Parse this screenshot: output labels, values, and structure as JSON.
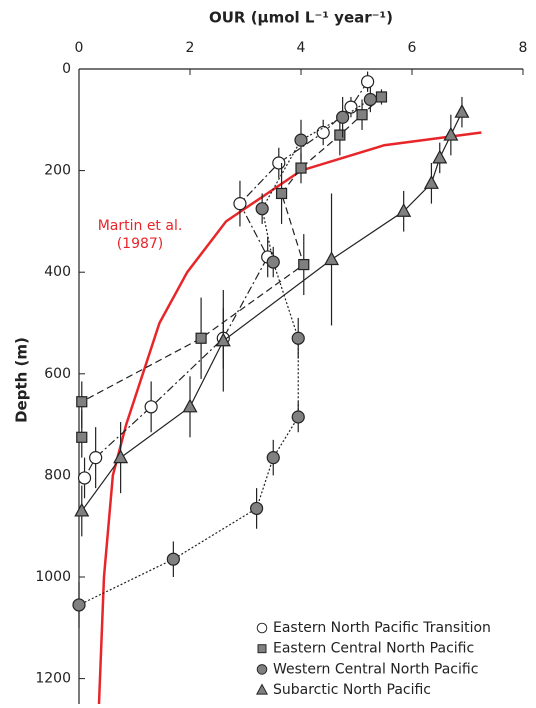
{
  "chart_data": {
    "type": "scatter",
    "title": "OUR (µmol L⁻¹ year⁻¹)",
    "y_label": "Depth (m)",
    "x_axis_position": "top",
    "y_inverted": true,
    "xlim": [
      0,
      8
    ],
    "xticks": [
      0,
      2,
      4,
      6,
      8
    ],
    "ylim": [
      0,
      1250
    ],
    "yticks": [
      0,
      200,
      400,
      600,
      800,
      1000,
      1200
    ],
    "legend": "lower right",
    "series": [
      {
        "name": "Eastern North Pacific Transition",
        "marker": "open-circle",
        "dash": "8 3 2 3",
        "color": "#222222",
        "fill": "#ffffff",
        "x": [
          5.2,
          4.9,
          4.4,
          3.6,
          2.9,
          3.4,
          2.6,
          1.3,
          0.3,
          0.1
        ],
        "y": [
          25,
          75,
          125,
          185,
          265,
          370,
          530,
          665,
          765,
          805
        ],
        "yerr": [
          20,
          20,
          25,
          30,
          45,
          40,
          60,
          50,
          60,
          40
        ]
      },
      {
        "name": "Eastern Central North Pacific",
        "marker": "square",
        "dash": "7 4",
        "color": "#222222",
        "fill": "#808080",
        "x": [
          5.45,
          5.1,
          4.7,
          4.0,
          3.65,
          4.05,
          2.2,
          0.05,
          0.05
        ],
        "y": [
          55,
          90,
          130,
          195,
          245,
          385,
          530,
          655,
          725
        ],
        "yerr": [
          15,
          30,
          40,
          30,
          60,
          60,
          80,
          40,
          40
        ]
      },
      {
        "name": "Western Central North Pacific",
        "marker": "circle",
        "dash": "2 2",
        "color": "#222222",
        "fill": "#808080",
        "x": [
          5.25,
          4.75,
          4.0,
          3.3,
          3.5,
          3.95,
          3.95,
          3.5,
          3.2,
          1.7,
          0.0
        ],
        "y": [
          60,
          95,
          140,
          275,
          380,
          530,
          685,
          765,
          865,
          965,
          1055
        ],
        "yerr": [
          25,
          40,
          40,
          30,
          30,
          40,
          30,
          35,
          40,
          35,
          45
        ]
      },
      {
        "name": "Subarctic North Pacific",
        "marker": "triangle",
        "dash": "",
        "color": "#222222",
        "fill": "#808080",
        "x": [
          6.9,
          6.7,
          6.5,
          6.35,
          5.85,
          4.55,
          2.6,
          2.0,
          0.75,
          0.05
        ],
        "y": [
          85,
          130,
          175,
          225,
          280,
          375,
          535,
          665,
          765,
          870
        ],
        "yerr": [
          30,
          40,
          30,
          40,
          40,
          130,
          100,
          60,
          70,
          50
        ]
      }
    ],
    "curve": {
      "color": "#e8262a",
      "x": [
        7.25,
        5.5,
        4.0,
        2.65,
        1.95,
        1.45,
        1.15,
        0.85,
        0.61,
        0.45,
        0.36
      ],
      "y": [
        125,
        150,
        200,
        300,
        400,
        500,
        600,
        700,
        800,
        1000,
        1250
      ]
    },
    "annotation": [
      "Martin et al.",
      "(1987)"
    ]
  }
}
